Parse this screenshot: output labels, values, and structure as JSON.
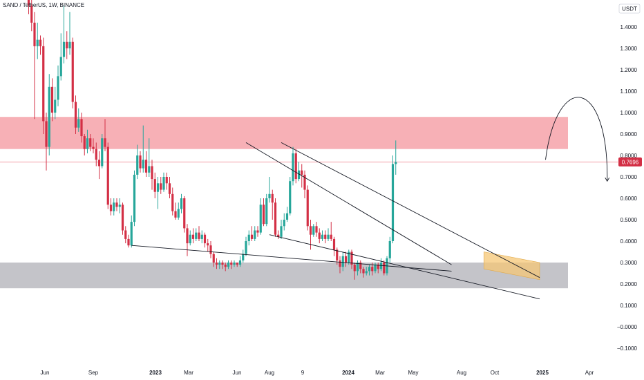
{
  "header": {
    "title": "SAND / TetherUS, 1W, BINANCE"
  },
  "price_axis": {
    "currency": "USDT",
    "tick_labels": [
      "1.4000",
      "1.3000",
      "1.2000",
      "1.1000",
      "1.0000",
      "0.9000",
      "0.8000",
      "0.7000",
      "0.6000",
      "0.5000",
      "0.4000",
      "0.3000",
      "0.2000",
      "0.1000",
      "−0.0000",
      "−0.1000"
    ],
    "current_price_label": "0.7696"
  },
  "time_axis": {
    "labels": [
      "Jun",
      "Sep",
      "2023",
      "Mar",
      "Jun",
      "Aug",
      "9",
      "2024",
      "Mar",
      "May",
      "Aug",
      "Oct",
      "2025",
      "Apr"
    ],
    "bold_labels": [
      "2023",
      "2024",
      "2025"
    ]
  },
  "colors": {
    "up": "#26a69a",
    "down": "#d32f45",
    "resistance_zone": "#f7b0b6",
    "support_zone": "#c4c4c9",
    "channel": "#f6c776",
    "price_line": "#f08b97",
    "price_tag": "#d32f45",
    "trendline": "#131722"
  },
  "chart_data": {
    "type": "candlestick",
    "symbol": "SAND / TetherUS",
    "interval": "1W",
    "exchange": "BINANCE",
    "y_range": [
      -0.13,
      1.5
    ],
    "last_price": 0.7696,
    "zones": [
      {
        "kind": "resistance",
        "from": 0.83,
        "to": 0.98
      },
      {
        "kind": "support",
        "from": 0.18,
        "to": 0.3
      }
    ],
    "candles": [
      [
        1.54,
        1.5,
        1.6,
        1.46
      ],
      [
        1.5,
        1.42,
        1.55,
        1.38
      ],
      [
        1.42,
        1.31,
        1.47,
        0.97
      ],
      [
        1.31,
        1.34,
        1.42,
        1.25
      ],
      [
        1.34,
        1.31,
        1.36,
        1.27
      ],
      [
        1.31,
        0.96,
        1.35,
        0.9
      ],
      [
        0.96,
        0.84,
        1.0,
        0.73
      ],
      [
        0.84,
        1.12,
        1.18,
        0.8
      ],
      [
        1.12,
        1.0,
        1.16,
        0.96
      ],
      [
        1.0,
        1.06,
        1.12,
        0.97
      ],
      [
        1.06,
        1.17,
        1.22,
        1.03
      ],
      [
        1.17,
        1.26,
        1.37,
        1.15
      ],
      [
        1.26,
        1.33,
        1.5,
        1.23
      ],
      [
        1.33,
        1.3,
        1.38,
        1.25
      ],
      [
        1.3,
        1.33,
        1.47,
        1.27
      ],
      [
        1.33,
        1.05,
        1.35,
        1.02
      ],
      [
        1.05,
        0.93,
        1.08,
        0.9
      ],
      [
        0.93,
        0.97,
        1.02,
        0.91
      ],
      [
        0.97,
        0.89,
        1.0,
        0.86
      ],
      [
        0.89,
        0.83,
        0.9,
        0.8
      ],
      [
        0.83,
        0.88,
        0.92,
        0.81
      ],
      [
        0.88,
        0.84,
        0.9,
        0.82
      ],
      [
        0.84,
        0.83,
        0.88,
        0.81
      ],
      [
        0.83,
        0.78,
        0.86,
        0.75
      ],
      [
        0.78,
        0.75,
        0.82,
        0.69
      ],
      [
        0.75,
        0.88,
        0.9,
        0.74
      ],
      [
        0.88,
        0.84,
        0.97,
        0.82
      ],
      [
        0.84,
        0.57,
        0.86,
        0.55
      ],
      [
        0.57,
        0.54,
        0.6,
        0.52
      ],
      [
        0.54,
        0.58,
        0.6,
        0.52
      ],
      [
        0.58,
        0.56,
        0.6,
        0.54
      ],
      [
        0.56,
        0.57,
        0.6,
        0.53
      ],
      [
        0.57,
        0.45,
        0.58,
        0.43
      ],
      [
        0.45,
        0.41,
        0.47,
        0.39
      ],
      [
        0.41,
        0.38,
        0.43,
        0.37
      ],
      [
        0.38,
        0.49,
        0.52,
        0.37
      ],
      [
        0.49,
        0.71,
        0.73,
        0.47
      ],
      [
        0.71,
        0.8,
        0.85,
        0.69
      ],
      [
        0.8,
        0.74,
        0.82,
        0.72
      ],
      [
        0.74,
        0.78,
        0.94,
        0.72
      ],
      [
        0.78,
        0.72,
        0.82,
        0.7
      ],
      [
        0.72,
        0.75,
        0.88,
        0.7
      ],
      [
        0.75,
        0.69,
        0.78,
        0.64
      ],
      [
        0.69,
        0.63,
        0.72,
        0.6
      ],
      [
        0.63,
        0.67,
        0.7,
        0.55
      ],
      [
        0.67,
        0.64,
        0.7,
        0.62
      ],
      [
        0.64,
        0.7,
        0.72,
        0.63
      ],
      [
        0.7,
        0.67,
        0.72,
        0.64
      ],
      [
        0.67,
        0.62,
        0.7,
        0.6
      ],
      [
        0.62,
        0.54,
        0.65,
        0.52
      ],
      [
        0.54,
        0.51,
        0.58,
        0.5
      ],
      [
        0.51,
        0.55,
        0.58,
        0.5
      ],
      [
        0.55,
        0.6,
        0.62,
        0.53
      ],
      [
        0.6,
        0.46,
        0.61,
        0.44
      ],
      [
        0.46,
        0.39,
        0.48,
        0.33
      ],
      [
        0.39,
        0.43,
        0.45,
        0.38
      ],
      [
        0.43,
        0.41,
        0.46,
        0.39
      ],
      [
        0.41,
        0.44,
        0.46,
        0.4
      ],
      [
        0.44,
        0.41,
        0.47,
        0.4
      ],
      [
        0.41,
        0.43,
        0.45,
        0.39
      ],
      [
        0.43,
        0.39,
        0.44,
        0.37
      ],
      [
        0.39,
        0.38,
        0.41,
        0.35
      ],
      [
        0.38,
        0.34,
        0.4,
        0.32
      ],
      [
        0.34,
        0.3,
        0.35,
        0.28
      ],
      [
        0.3,
        0.29,
        0.32,
        0.27
      ],
      [
        0.29,
        0.3,
        0.31,
        0.27
      ],
      [
        0.3,
        0.29,
        0.31,
        0.27
      ],
      [
        0.29,
        0.28,
        0.3,
        0.26
      ],
      [
        0.28,
        0.3,
        0.31,
        0.27
      ],
      [
        0.3,
        0.29,
        0.31,
        0.27
      ],
      [
        0.29,
        0.3,
        0.31,
        0.28
      ],
      [
        0.3,
        0.29,
        0.3,
        0.28
      ],
      [
        0.29,
        0.31,
        0.33,
        0.28
      ],
      [
        0.31,
        0.34,
        0.36,
        0.3
      ],
      [
        0.34,
        0.4,
        0.42,
        0.33
      ],
      [
        0.4,
        0.43,
        0.45,
        0.38
      ],
      [
        0.43,
        0.41,
        0.47,
        0.4
      ],
      [
        0.41,
        0.45,
        0.47,
        0.4
      ],
      [
        0.45,
        0.44,
        0.47,
        0.42
      ],
      [
        0.44,
        0.57,
        0.6,
        0.43
      ],
      [
        0.57,
        0.48,
        0.6,
        0.47
      ],
      [
        0.48,
        0.6,
        0.62,
        0.47
      ],
      [
        0.6,
        0.62,
        0.7,
        0.58
      ],
      [
        0.62,
        0.58,
        0.64,
        0.5
      ],
      [
        0.58,
        0.43,
        0.6,
        0.42
      ],
      [
        0.43,
        0.42,
        0.45,
        0.41
      ],
      [
        0.42,
        0.47,
        0.5,
        0.41
      ],
      [
        0.47,
        0.5,
        0.53,
        0.45
      ],
      [
        0.5,
        0.53,
        0.56,
        0.49
      ],
      [
        0.53,
        0.68,
        0.7,
        0.52
      ],
      [
        0.68,
        0.81,
        0.84,
        0.66
      ],
      [
        0.81,
        0.69,
        0.83,
        0.67
      ],
      [
        0.69,
        0.73,
        0.77,
        0.68
      ],
      [
        0.73,
        0.71,
        0.76,
        0.65
      ],
      [
        0.71,
        0.64,
        0.73,
        0.6
      ],
      [
        0.64,
        0.47,
        0.66,
        0.45
      ],
      [
        0.47,
        0.43,
        0.5,
        0.36
      ],
      [
        0.43,
        0.47,
        0.48,
        0.42
      ],
      [
        0.47,
        0.44,
        0.49,
        0.42
      ],
      [
        0.44,
        0.41,
        0.46,
        0.39
      ],
      [
        0.41,
        0.43,
        0.45,
        0.4
      ],
      [
        0.43,
        0.41,
        0.45,
        0.39
      ],
      [
        0.41,
        0.43,
        0.46,
        0.4
      ],
      [
        0.43,
        0.41,
        0.49,
        0.4
      ],
      [
        0.41,
        0.36,
        0.42,
        0.33
      ],
      [
        0.36,
        0.31,
        0.37,
        0.29
      ],
      [
        0.31,
        0.28,
        0.33,
        0.25
      ],
      [
        0.28,
        0.33,
        0.35,
        0.26
      ],
      [
        0.33,
        0.3,
        0.35,
        0.28
      ],
      [
        0.3,
        0.35,
        0.36,
        0.29
      ],
      [
        0.35,
        0.29,
        0.36,
        0.27
      ],
      [
        0.29,
        0.26,
        0.3,
        0.22
      ],
      [
        0.26,
        0.3,
        0.31,
        0.24
      ],
      [
        0.3,
        0.27,
        0.31,
        0.25
      ],
      [
        0.27,
        0.25,
        0.28,
        0.23
      ],
      [
        0.25,
        0.26,
        0.28,
        0.24
      ],
      [
        0.26,
        0.28,
        0.29,
        0.24
      ],
      [
        0.28,
        0.26,
        0.3,
        0.24
      ],
      [
        0.26,
        0.29,
        0.3,
        0.25
      ],
      [
        0.29,
        0.27,
        0.3,
        0.25
      ],
      [
        0.27,
        0.3,
        0.32,
        0.26
      ],
      [
        0.3,
        0.25,
        0.31,
        0.24
      ],
      [
        0.25,
        0.32,
        0.33,
        0.24
      ],
      [
        0.32,
        0.4,
        0.42,
        0.3
      ],
      [
        0.4,
        0.76,
        0.8,
        0.39
      ],
      [
        0.76,
        0.7696,
        0.87,
        0.71
      ]
    ],
    "trendlines": [
      {
        "from": [
          74,
          0.86
        ],
        "to": [
          144,
          0.29
        ]
      },
      {
        "from": [
          35,
          0.38
        ],
        "to": [
          144,
          0.26
        ]
      },
      {
        "from": [
          86,
          0.86
        ],
        "to": [
          174,
          0.23
        ]
      },
      {
        "from": [
          82,
          0.43
        ],
        "to": [
          174,
          0.13
        ]
      }
    ],
    "channel": {
      "points": [
        [
          155,
          0.35
        ],
        [
          174,
          0.3
        ],
        [
          174,
          0.22
        ],
        [
          155,
          0.27
        ]
      ]
    },
    "projection": {
      "from": [
        176,
        0.78
      ],
      "via": [
        180,
        1.07
      ],
      "to": [
        197,
        0.68
      ]
    }
  }
}
